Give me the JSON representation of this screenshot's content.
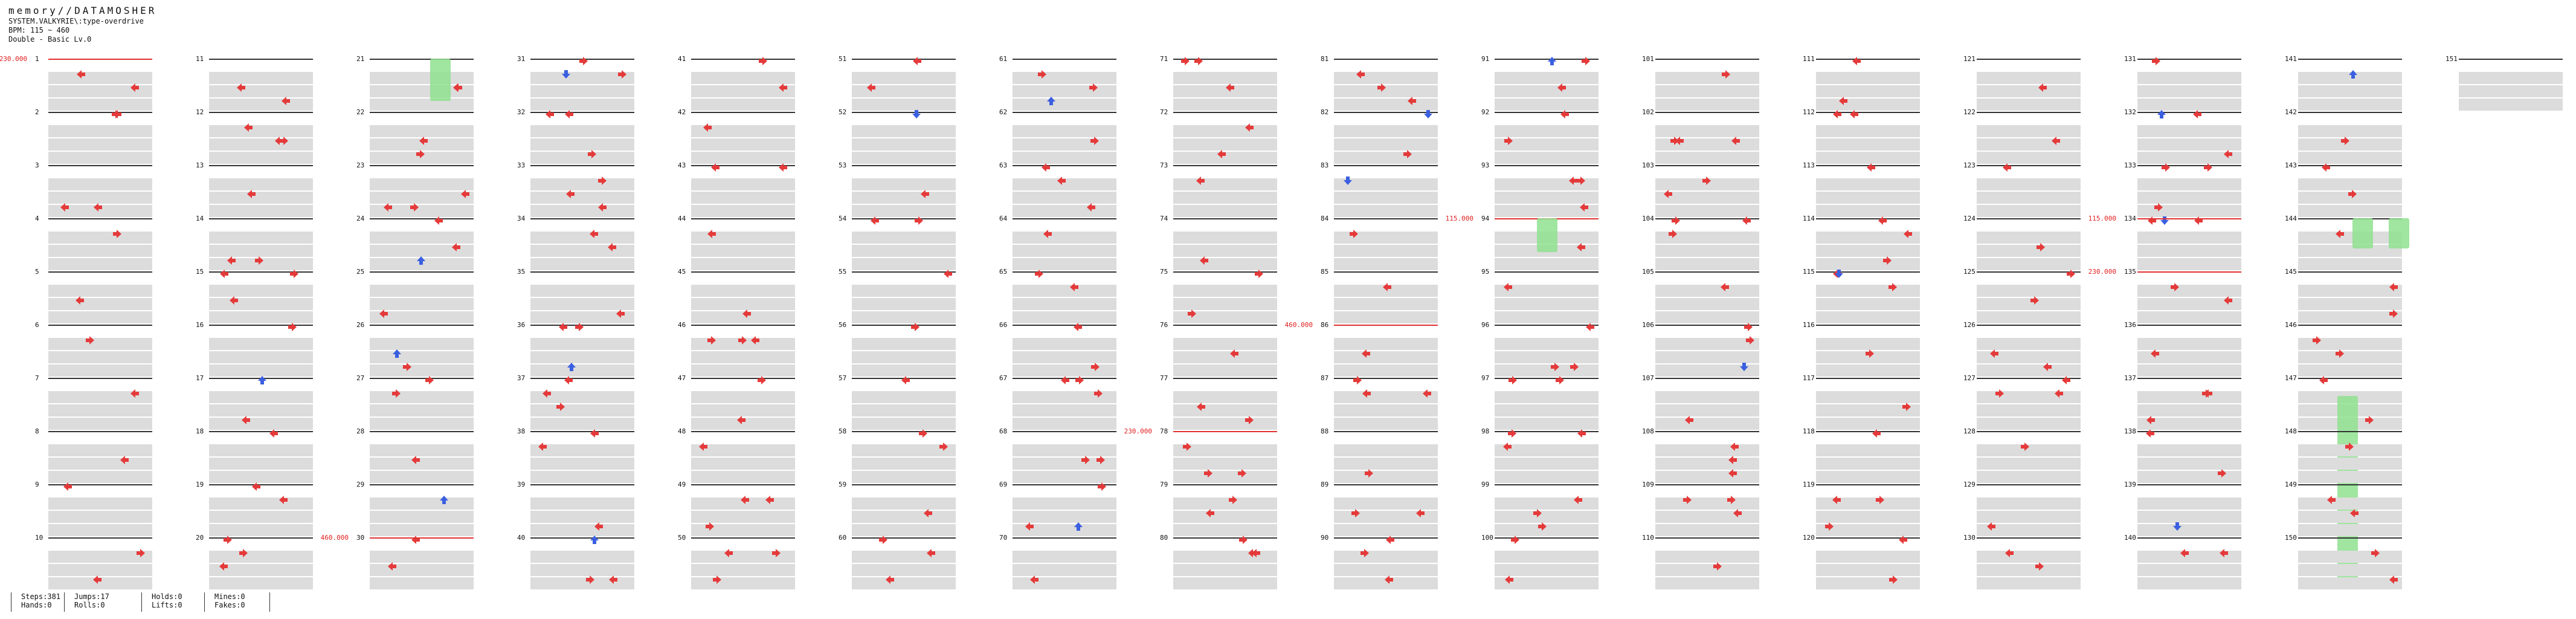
{
  "header": {
    "title": "memory//DATAMOSHER",
    "line1": "SYSTEM.VALKYRIE\\:type-overdrive",
    "line2": "BPM: 115 ~ 460",
    "line3": "Double - Basic  Lv.0"
  },
  "columns": [
    {
      "measures": [
        1,
        2,
        3,
        4,
        5,
        6,
        7,
        8,
        9,
        10
      ]
    },
    {
      "measures": [
        11,
        12,
        13,
        14,
        15,
        16,
        17,
        18,
        19,
        20
      ]
    },
    {
      "measures": [
        21,
        22,
        23,
        24,
        25,
        26,
        27,
        28,
        29,
        30
      ]
    },
    {
      "measures": [
        31,
        32,
        33,
        34,
        35,
        36,
        37,
        38,
        39,
        40
      ]
    },
    {
      "measures": [
        41,
        42,
        43,
        44,
        45,
        46,
        47,
        48,
        49,
        50
      ]
    },
    {
      "measures": [
        51,
        52,
        53,
        54,
        55,
        56,
        57,
        58,
        59,
        60
      ]
    },
    {
      "measures": [
        61,
        62,
        63,
        64,
        65,
        66,
        67,
        68,
        69,
        70
      ]
    },
    {
      "measures": [
        71,
        72,
        73,
        74,
        75,
        76,
        77,
        78,
        79,
        80
      ]
    },
    {
      "measures": [
        81,
        82,
        83,
        84,
        85,
        86,
        87,
        88,
        89,
        90
      ]
    },
    {
      "measures": [
        91,
        92,
        93,
        94,
        95,
        96,
        97,
        98,
        99,
        100
      ]
    },
    {
      "measures": [
        101,
        102,
        103,
        104,
        105,
        106,
        107,
        108,
        109,
        110
      ]
    },
    {
      "measures": [
        111,
        112,
        113,
        114,
        115,
        116,
        117,
        118,
        119,
        120
      ]
    },
    {
      "measures": [
        121,
        122,
        123,
        124,
        125,
        126,
        127,
        128,
        129,
        130
      ]
    },
    {
      "measures": [
        131,
        132,
        133,
        134,
        135,
        136,
        137,
        138,
        139,
        140
      ]
    },
    {
      "measures": [
        141,
        142,
        143,
        144,
        145,
        146,
        147,
        148,
        149,
        150
      ]
    },
    {
      "measures": [
        151
      ]
    }
  ],
  "bpm_changes": [
    {
      "col": 0,
      "measure_index": 0,
      "label": "230.000"
    },
    {
      "col": 2,
      "measure_index": 9,
      "label": "460.000"
    },
    {
      "col": 7,
      "measure_index": 7,
      "label": "230.000"
    },
    {
      "col": 8,
      "measure_index": 5,
      "label": "460.000"
    },
    {
      "col": 9,
      "measure_index": 3,
      "label": "115.000"
    },
    {
      "col": 13,
      "measure_index": 3,
      "label": "115.000"
    },
    {
      "col": 13,
      "measure_index": 4,
      "label": "230.000"
    }
  ],
  "colors": {
    "arrow_red": "#e53a3a",
    "arrow_blue": "#3a5fe0",
    "hold_green": "#8fe08f",
    "band": "#dcdcdc",
    "bpm": "#e02020"
  },
  "stats": {
    "steps": "Steps:381",
    "hands": "Hands:0",
    "jumps": "Jumps:17",
    "rolls": "Rolls:0",
    "holds": "Holds:0",
    "lifts": "Lifts:0",
    "mines": "Mines:0",
    "fakes": "Fakes:0"
  }
}
